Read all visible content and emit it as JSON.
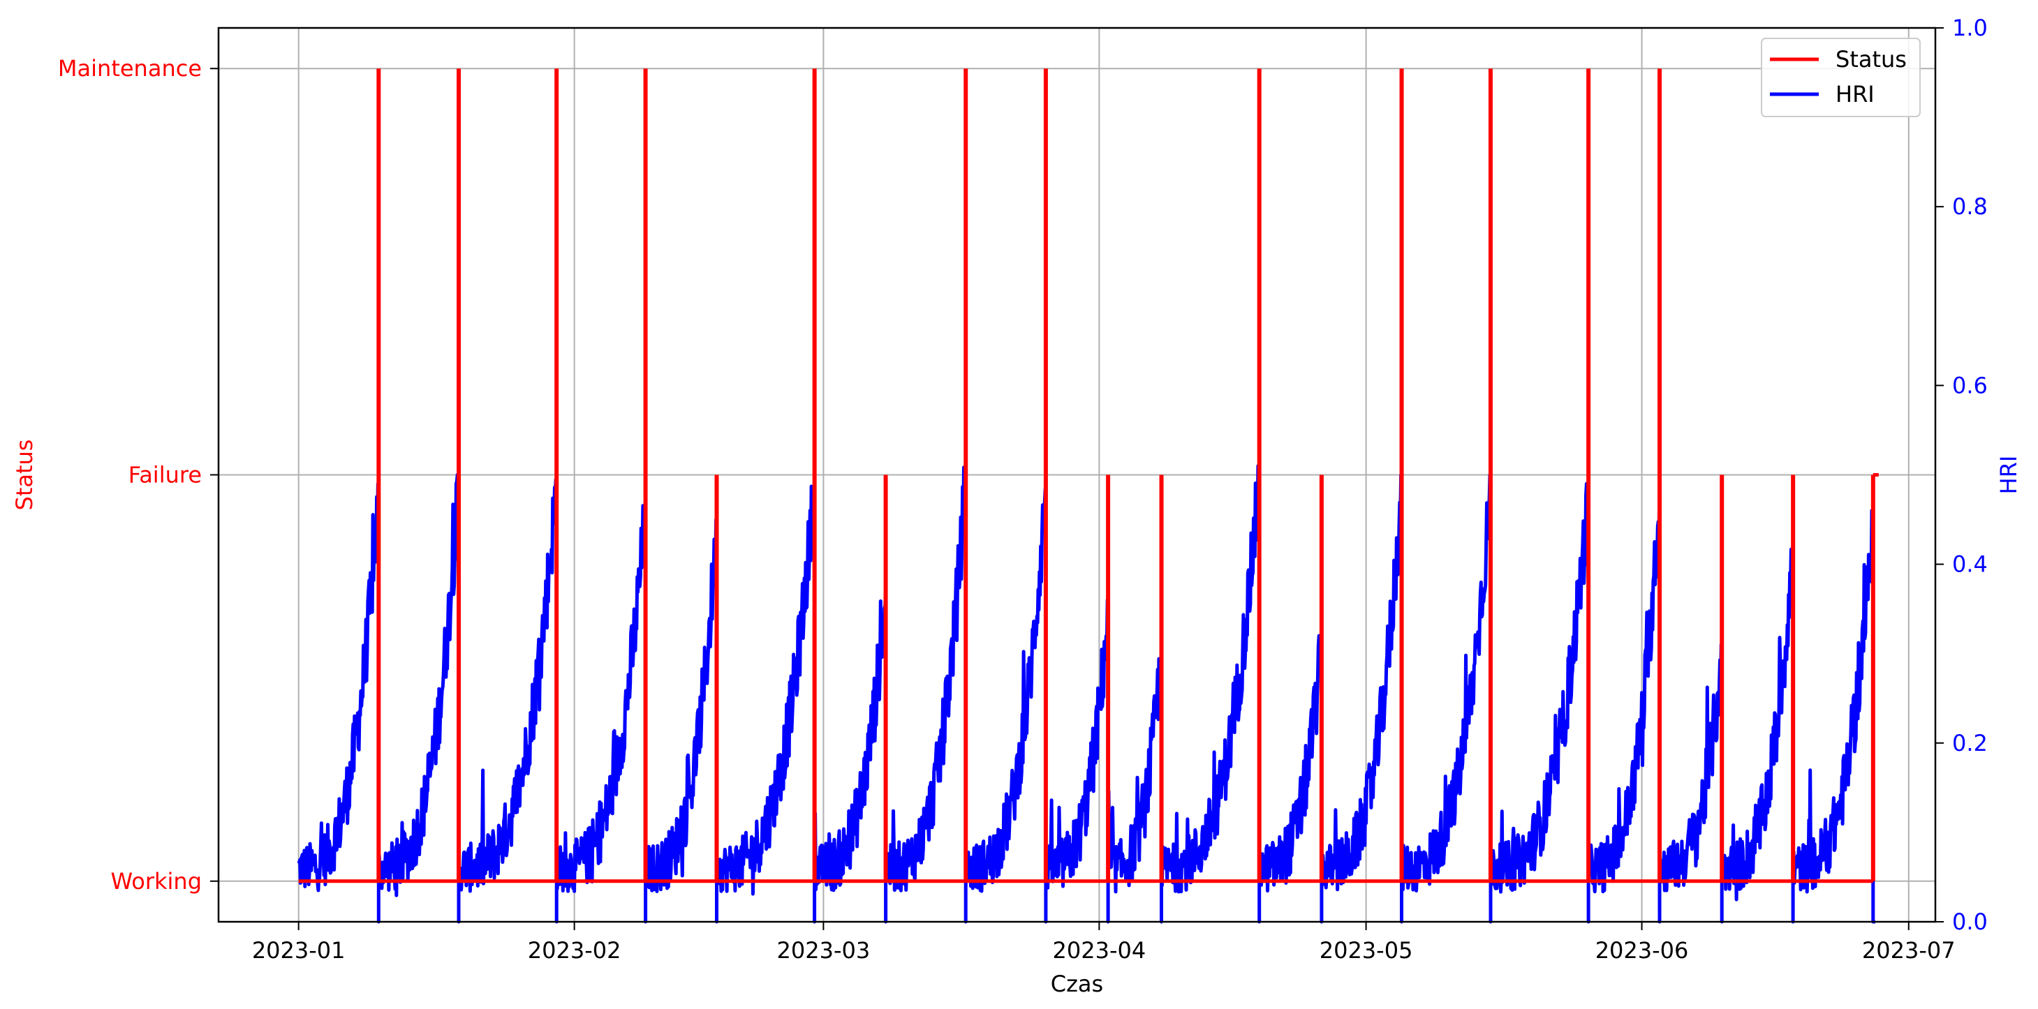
{
  "chart_data": {
    "type": "line",
    "xlabel": "Czas",
    "x_ticks": [
      "2023-01",
      "2023-02",
      "2023-03",
      "2023-04",
      "2023-05",
      "2023-06",
      "2023-07"
    ],
    "xlim": [
      "2022-12-23",
      "2023-07-04"
    ],
    "left_axis": {
      "label": "Status",
      "color": "#ff0000",
      "categories": [
        "Working",
        "Failure",
        "Maintenance"
      ],
      "ylim": [
        -0.1,
        2.1
      ]
    },
    "right_axis": {
      "label": "HRI",
      "color": "#0000ff",
      "ticks": [
        "0.0",
        "0.2",
        "0.4",
        "0.6",
        "0.8",
        "1.0"
      ],
      "ylim": [
        0,
        1
      ]
    },
    "grid": true,
    "legend": {
      "position": "top-right",
      "entries": [
        "Status",
        "HRI"
      ]
    },
    "series": [
      {
        "name": "Status",
        "color": "#ff0000",
        "axis": "left",
        "baseline": "Working",
        "events": [
          {
            "date": "2023-01-10",
            "status": "Maintenance"
          },
          {
            "date": "2023-01-19",
            "status": "Maintenance"
          },
          {
            "date": "2023-01-30",
            "status": "Maintenance"
          },
          {
            "date": "2023-02-09",
            "status": "Maintenance"
          },
          {
            "date": "2023-02-17",
            "status": "Failure"
          },
          {
            "date": "2023-02-28",
            "status": "Maintenance"
          },
          {
            "date": "2023-03-08",
            "status": "Failure"
          },
          {
            "date": "2023-03-17",
            "status": "Maintenance"
          },
          {
            "date": "2023-03-26",
            "status": "Maintenance"
          },
          {
            "date": "2023-04-02",
            "status": "Failure"
          },
          {
            "date": "2023-04-08",
            "status": "Failure"
          },
          {
            "date": "2023-04-19",
            "status": "Maintenance"
          },
          {
            "date": "2023-04-26",
            "status": "Failure"
          },
          {
            "date": "2023-05-05",
            "status": "Maintenance"
          },
          {
            "date": "2023-05-15",
            "status": "Maintenance"
          },
          {
            "date": "2023-05-26",
            "status": "Maintenance"
          },
          {
            "date": "2023-06-03",
            "status": "Maintenance"
          },
          {
            "date": "2023-06-10",
            "status": "Failure"
          },
          {
            "date": "2023-06-18",
            "status": "Failure"
          },
          {
            "date": "2023-06-27",
            "status": "Failure"
          }
        ]
      },
      {
        "name": "HRI",
        "color": "#0000ff",
        "axis": "right",
        "cycles": [
          {
            "start": "2023-01-01",
            "end": "2023-01-10",
            "peak": 0.48
          },
          {
            "start": "2023-01-10",
            "end": "2023-01-19",
            "peak": 0.49
          },
          {
            "start": "2023-01-19",
            "end": "2023-01-30",
            "peak": 0.49
          },
          {
            "start": "2023-01-30",
            "end": "2023-02-09",
            "peak": 0.46
          },
          {
            "start": "2023-02-09",
            "end": "2023-02-17",
            "peak": 0.44
          },
          {
            "start": "2023-02-17",
            "end": "2023-02-28",
            "peak": 0.49
          },
          {
            "start": "2023-02-28",
            "end": "2023-03-08",
            "peak": 0.37
          },
          {
            "start": "2023-03-08",
            "end": "2023-03-17",
            "peak": 0.5
          },
          {
            "start": "2023-03-17",
            "end": "2023-03-26",
            "peak": 0.49
          },
          {
            "start": "2023-03-26",
            "end": "2023-04-02",
            "peak": 0.35
          },
          {
            "start": "2023-04-02",
            "end": "2023-04-08",
            "peak": 0.3
          },
          {
            "start": "2023-04-08",
            "end": "2023-04-19",
            "peak": 0.5
          },
          {
            "start": "2023-04-19",
            "end": "2023-04-26",
            "peak": 0.31
          },
          {
            "start": "2023-04-26",
            "end": "2023-05-05",
            "peak": 0.49
          },
          {
            "start": "2023-05-05",
            "end": "2023-05-15",
            "peak": 0.49
          },
          {
            "start": "2023-05-15",
            "end": "2023-05-26",
            "peak": 0.48
          },
          {
            "start": "2023-05-26",
            "end": "2023-06-03",
            "peak": 0.48
          },
          {
            "start": "2023-06-03",
            "end": "2023-06-10",
            "peak": 0.3
          },
          {
            "start": "2023-06-10",
            "end": "2023-06-18",
            "peak": 0.42
          },
          {
            "start": "2023-06-18",
            "end": "2023-06-27",
            "peak": 0.45
          }
        ],
        "baseline_level": 0.06,
        "end_value": 0.0
      }
    ]
  }
}
